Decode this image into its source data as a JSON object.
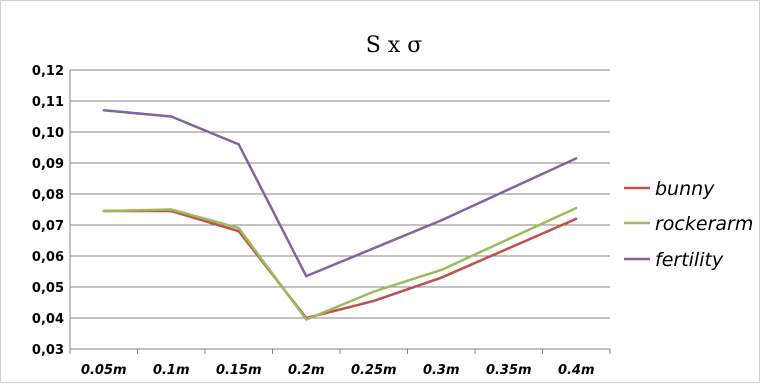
{
  "chart_data": {
    "type": "line",
    "title": "S x σ",
    "xlabel": "",
    "ylabel": "",
    "categories": [
      "0.05m",
      "0.1m",
      "0.15m",
      "0.2m",
      "0.25m",
      "0.3m",
      "0.35m",
      "0.4m"
    ],
    "ylim": [
      0.03,
      0.12
    ],
    "yticks": [
      "0,03",
      "0,04",
      "0,05",
      "0,06",
      "0,07",
      "0,08",
      "0,09",
      "0,10",
      "0,11",
      "0,12"
    ],
    "grid": "horizontal",
    "legend_position": "right",
    "series": [
      {
        "name": "bunny",
        "color": "#c0504d",
        "values": [
          0.0745,
          0.0745,
          0.068,
          0.04,
          0.0455,
          0.053,
          0.0625,
          0.072
        ]
      },
      {
        "name": "rockerarm",
        "color": "#9bbb59",
        "values": [
          0.0745,
          0.075,
          0.069,
          0.0395,
          0.0485,
          0.0555,
          0.0655,
          0.0755
        ]
      },
      {
        "name": "fertility",
        "color": "#8064a2",
        "values": [
          0.107,
          0.105,
          0.096,
          0.0535,
          0.0625,
          0.0715,
          0.0815,
          0.0915
        ]
      }
    ]
  }
}
